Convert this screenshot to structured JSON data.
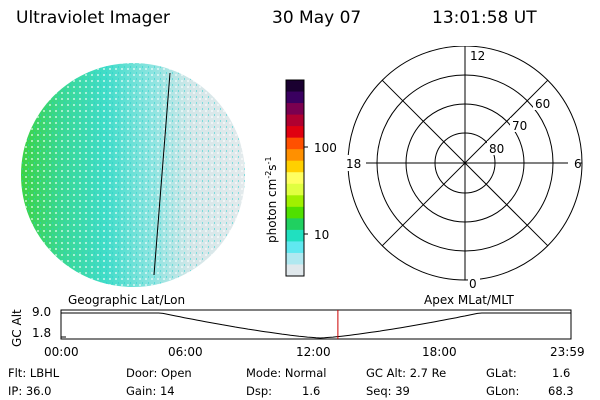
{
  "header": {
    "title": "Ultraviolet Imager",
    "date": "30 May 07",
    "time": "13:01:58 UT"
  },
  "colorbar": {
    "label": "photon cm",
    "label_sup1": "-2",
    "label_mid": "s",
    "label_sup2": "-1",
    "ticks": [
      "100",
      "10"
    ],
    "colors": [
      "#1a0030",
      "#3a0060",
      "#7a0050",
      "#b00030",
      "#e00010",
      "#ff5000",
      "#ff9000",
      "#ffd000",
      "#ffff60",
      "#e0ff40",
      "#a0f000",
      "#50e000",
      "#20d060",
      "#20e0c0",
      "#60e8f0",
      "#b0e8f0",
      "#e0e8ec"
    ]
  },
  "polar_plot": {
    "mlt_labels": {
      "top": "12",
      "bottom": "0",
      "left": "18",
      "right": "6"
    },
    "lat_labels": [
      "60",
      "70",
      "80"
    ]
  },
  "timeline": {
    "ylabel": "GC Alt",
    "left_title": "Geographic Lat/Lon",
    "right_title": "Apex MLat/MLT",
    "y_ticks": [
      "9.0",
      "1.8"
    ],
    "x_ticks": [
      "00:00",
      "06:00",
      "12:00",
      "18:00",
      "23:59"
    ],
    "current_hour": 13.03
  },
  "info": {
    "flt": "Flt: LBHL",
    "ip": "IP: 36.0",
    "door": "Door: Open",
    "gain": "Gain: 14",
    "mode": "Mode: Normal",
    "dsp_label": "Dsp:",
    "dsp_value": "1.6",
    "gc_alt": "GC Alt: 2.7 Re",
    "seq": "Seq: 39",
    "glat_label": "GLat:",
    "glat_value": "1.6",
    "glon_label": "GLon:",
    "glon_value": "68.3"
  },
  "colors": {
    "accent_red": "#cc0000",
    "globe_bright": "#40d040",
    "globe_mid": "#40e0c0",
    "globe_dim": "#d8e4e8"
  }
}
